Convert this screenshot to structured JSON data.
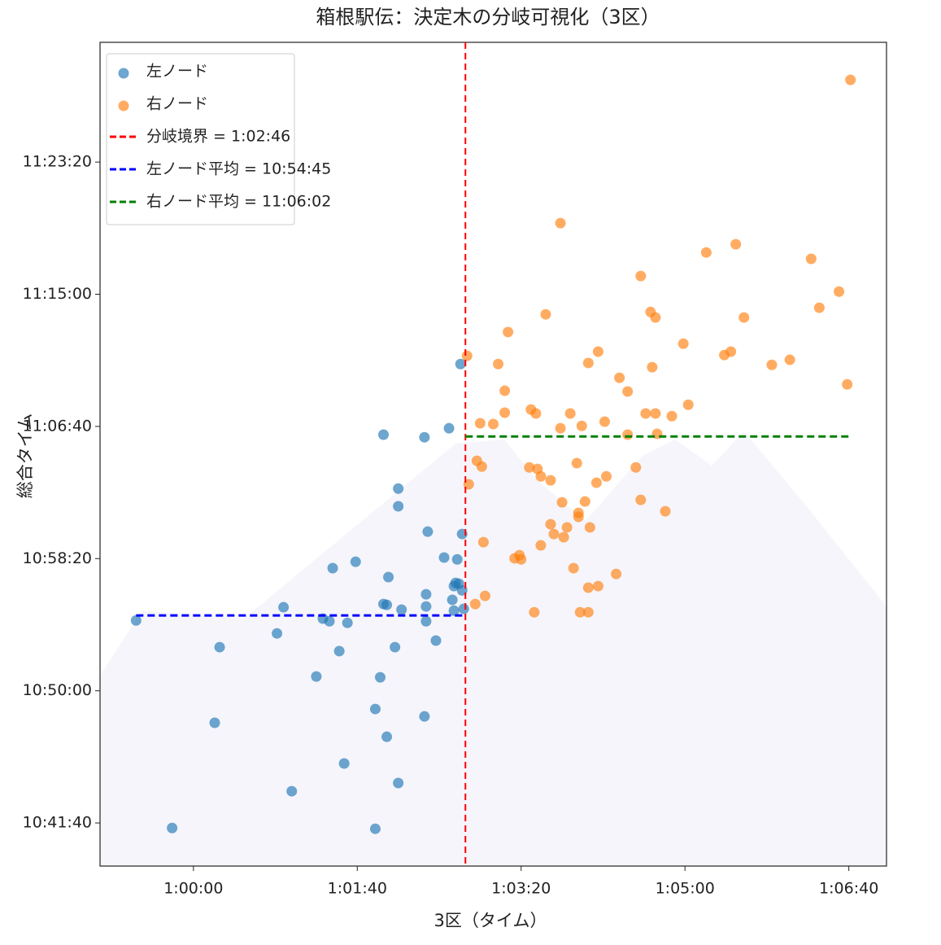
{
  "chart_data": {
    "type": "scatter",
    "title": "箱根駅伝：決定木の分岐可視化（3区）",
    "xlabel": "3区（タイム）",
    "ylabel": "総合タイム",
    "xlim": [
      3543,
      4023
    ],
    "ylim": [
      38337,
      41453
    ],
    "xticks": [
      {
        "value": 3600,
        "label": "1:00:00"
      },
      {
        "value": 3700,
        "label": "1:01:40"
      },
      {
        "value": 3800,
        "label": "1:03:20"
      },
      {
        "value": 3900,
        "label": "1:05:00"
      },
      {
        "value": 4000,
        "label": "1:06:40"
      }
    ],
    "yticks": [
      {
        "value": 38500,
        "label": "10:41:40"
      },
      {
        "value": 39000,
        "label": "10:50:00"
      },
      {
        "value": 39500,
        "label": "10:58:20"
      },
      {
        "value": 40000,
        "label": "11:06:40"
      },
      {
        "value": 40500,
        "label": "11:15:00"
      },
      {
        "value": 41000,
        "label": "11:23:20"
      }
    ],
    "series": [
      {
        "name": "左ノード",
        "color": "#1f77b4",
        "x": [
          3565,
          3587,
          3613,
          3616,
          3651,
          3655,
          3660,
          3675,
          3679,
          3683,
          3685,
          3689,
          3692,
          3694,
          3699,
          3711,
          3711,
          3714,
          3716,
          3716,
          3718,
          3718,
          3719,
          3723,
          3725,
          3725,
          3725,
          3727,
          3741,
          3741,
          3742,
          3742,
          3742,
          3743,
          3748,
          3753,
          3756,
          3758,
          3759,
          3759,
          3760,
          3761,
          3762,
          3763,
          3764,
          3764,
          3765
        ],
        "values": [
          39266,
          38481,
          38879,
          39165,
          39217,
          39316,
          38620,
          39054,
          39273,
          39263,
          39464,
          39150,
          38725,
          39257,
          39488,
          38931,
          38478,
          39051,
          39969,
          39328,
          39325,
          38826,
          39430,
          39165,
          39765,
          39698,
          38651,
          39307,
          38903,
          39959,
          39365,
          39319,
          39263,
          39602,
          39190,
          39504,
          39993,
          39344,
          39396,
          39303,
          39408,
          39497,
          39405,
          40236,
          39593,
          39380,
          39310
        ],
        "mean": {
          "name": "左ノード平均 = 10:54:45",
          "color": "#0000ff",
          "value": 39285
        }
      },
      {
        "name": "右ノード",
        "color": "#ff7f0e",
        "x": [
          4001,
          3767,
          3768,
          3773,
          3775,
          3776,
          3772,
          3777,
          3778,
          3783,
          3786,
          3790,
          3790,
          3792,
          3796,
          3799,
          3800,
          3805,
          3806,
          3808,
          3809,
          3810,
          3812,
          3812,
          3815,
          3818,
          3818,
          3820,
          3824,
          3824,
          3825,
          3826,
          3828,
          3830,
          3832,
          3834,
          3835,
          3835,
          3836,
          3837,
          3839,
          3841,
          3841,
          3841,
          3842,
          3846,
          3847,
          3847,
          3851,
          3852,
          3858,
          3860,
          3865,
          3865,
          3870,
          3873,
          3873,
          3876,
          3879,
          3880,
          3882,
          3882,
          3883,
          3888,
          3892,
          3899,
          3902,
          3913,
          3924,
          3928,
          3931,
          3936,
          3953,
          3964,
          3977,
          3982,
          3994,
          3999
        ],
        "values": [
          41311,
          40267,
          39781,
          39870,
          40012,
          39848,
          39328,
          39562,
          39359,
          40009,
          40236,
          40135,
          40052,
          40357,
          39501,
          39513,
          39497,
          39845,
          40064,
          39297,
          40049,
          39839,
          39811,
          39550,
          40424,
          39796,
          39630,
          39593,
          40769,
          39993,
          39713,
          39581,
          39618,
          40049,
          39464,
          39861,
          39658,
          39673,
          39297,
          40002,
          39716,
          39297,
          39390,
          40240,
          39618,
          39787,
          40283,
          39396,
          40018,
          39811,
          39442,
          40184,
          40132,
          39969,
          39845,
          40569,
          39722,
          40049,
          40433,
          40224,
          40412,
          40049,
          39972,
          39679,
          40039,
          40313,
          40082,
          40658,
          40270,
          40283,
          40689,
          40412,
          40233,
          40252,
          40634,
          40449,
          40510,
          40159
        ],
        "mean": {
          "name": "右ノード平均 = 11:06:02",
          "color": "#008000",
          "value": 39962
        }
      }
    ],
    "threshold": {
      "name": "分岐境界 = 1:02:46",
      "color": "#ff0000",
      "x": 3766
    }
  }
}
